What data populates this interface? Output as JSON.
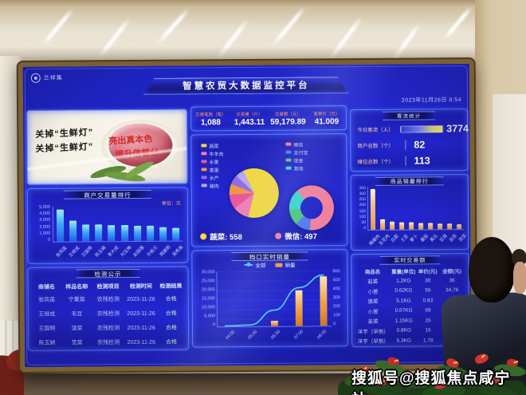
{
  "watermark": "搜狐号@搜狐焦点咸宁站",
  "screen": {
    "logo_text": "兰祥集",
    "title": "智慧农贸大数据监控平台",
    "datetime": "2023年11月28日 8:54",
    "stats": [
      {
        "label": "交易笔数（笔）",
        "value": "1,088"
      },
      {
        "label": "交易量（斤）",
        "value": "1,443.11"
      },
      {
        "label": "交易额（元）",
        "value": "59,179.89"
      },
      {
        "label": "客单价（元）",
        "value": "41.009"
      }
    ],
    "banner": {
      "line1": "关掉“生鲜灯”",
      "line2": "关掉“生鲜灯”",
      "slogan1": "亮出真本色",
      "slogan2": "提升信誉分"
    },
    "inspection": {
      "title": "检测公示",
      "headers": [
        "商铺名",
        "样品名称",
        "检测项目",
        "检测时间",
        "检测结果"
      ],
      "rows": [
        [
          "张凤莲",
          "宁夏菜",
          "农残检测",
          "2023-11-26",
          "合格"
        ],
        [
          "王继成",
          "毛豆",
          "农残检测",
          "2023-11-26",
          "合格"
        ],
        [
          "王国明",
          "菠菜",
          "农残检测",
          "2023-11-26",
          "合格"
        ],
        [
          "陈玉娟",
          "苋菜",
          "农残检测",
          "2023-11-26",
          "合格"
        ]
      ]
    },
    "visitors": {
      "title": "客流统计",
      "rows": [
        {
          "label": "今日客流（人）",
          "value": "3774",
          "bar": true
        },
        {
          "label": "商户总数（个）",
          "value": "82"
        },
        {
          "label": "摊位总数（个）",
          "value": "113"
        }
      ]
    },
    "realtime": {
      "title": "实时交易额",
      "headers": [
        "商品名",
        "重量(单位)",
        "单价(元)",
        "金额(元)"
      ],
      "rows": [
        [
          "韭菜",
          "1.2KG",
          "30",
          "36"
        ],
        [
          "小葱",
          "0.62KG",
          "56",
          "34.76"
        ],
        [
          "菠菜",
          "5.1KG",
          "0.83",
          "4.23"
        ],
        [
          "小葱",
          "0.67KG",
          "68",
          "45.56"
        ],
        [
          "韭菜",
          "1.15KG",
          "26",
          "29.96"
        ],
        [
          "洋芋（早熟）",
          "0.8KG",
          "16",
          "12.8"
        ],
        [
          "洋芋（早熟）",
          "5.3KG",
          "1.78",
          "9.44"
        ]
      ]
    }
  },
  "chart_data": [
    {
      "id": "merchant_rank",
      "type": "bar",
      "title": "商户交易量排行",
      "unit": "单位：元",
      "categories": [
        "张凤莲",
        "王继成",
        "王国明",
        "陈玉娟",
        "李大成",
        "刘玉梅",
        "赵国强",
        "孙桂兰",
        "周建明",
        "吴秀英"
      ],
      "values": [
        4600,
        2900,
        2400,
        2350,
        2300,
        2250,
        2200,
        2150,
        1900,
        1850
      ],
      "ylim": [
        0,
        5000
      ],
      "yticks": [
        "5,000",
        "4,000",
        "3,000",
        "2,000",
        "1,000",
        "0"
      ]
    },
    {
      "id": "category_pie",
      "type": "pie",
      "footer_label": "蔬菜",
      "footer_value": "558",
      "slices": [
        {
          "label": "蔬菜",
          "value": 558,
          "color": "#f2d93e"
        },
        {
          "label": "牛羊肉",
          "value": 96,
          "color": "#ef7fb2"
        },
        {
          "label": "水果",
          "value": 88,
          "color": "#e8559e"
        },
        {
          "label": "禽蛋",
          "value": 64,
          "color": "#f2953f"
        },
        {
          "label": "水产",
          "value": 58,
          "color": "#8e6ce0"
        },
        {
          "label": "猪肉",
          "value": 52,
          "color": "#b9a6ee"
        }
      ]
    },
    {
      "id": "payment_pie",
      "type": "donut",
      "footer_label": "微信",
      "footer_value": "497",
      "slices": [
        {
          "label": "微信",
          "value": 497,
          "color": "#f2809a"
        },
        {
          "label": "支付宝",
          "value": 88,
          "color": "#4f7bf0"
        },
        {
          "label": "现金",
          "value": 92,
          "color": "#49c97e"
        },
        {
          "label": "其他",
          "value": 120,
          "color": "#38d6c9"
        }
      ]
    },
    {
      "id": "sales_trend",
      "type": "line+bar",
      "title": "档口实时销量",
      "legend": [
        {
          "label": "全部",
          "color": "#4fc3ff",
          "type": "line"
        },
        {
          "label": "销量",
          "color": "#f09a4a",
          "type": "bar"
        }
      ],
      "x": [
        "04:00",
        "05:00",
        "06:00",
        "07:00",
        "08:00"
      ],
      "line_values": [
        300,
        800,
        9000,
        21500,
        28500
      ],
      "bar_values": [
        0,
        0,
        60,
        400,
        555
      ],
      "ylim_left": [
        0,
        30000
      ],
      "yticks_left": [
        "30,000",
        "25,000",
        "20,000",
        "15,000",
        "10,000",
        "5,000",
        "0"
      ],
      "ylim_right": [
        0,
        600
      ],
      "yticks_right": [
        "600",
        "500",
        "400",
        "300",
        "200",
        "100",
        "0"
      ]
    },
    {
      "id": "product_rank",
      "type": "bar",
      "title": "商品销量排行",
      "categories": [
        "精瘦肉",
        "五花肉",
        "白菜",
        "土豆",
        "萝卜",
        "番茄",
        "黄瓜",
        "豆腐",
        "韭菜",
        "菠菜"
      ],
      "values": [
        332,
        86,
        64,
        58,
        56,
        53,
        50,
        48,
        46,
        42
      ],
      "ylim": [
        0,
        350
      ],
      "yticks": [
        "350",
        "300",
        "250",
        "200",
        "150",
        "100",
        "50",
        "0"
      ]
    }
  ]
}
